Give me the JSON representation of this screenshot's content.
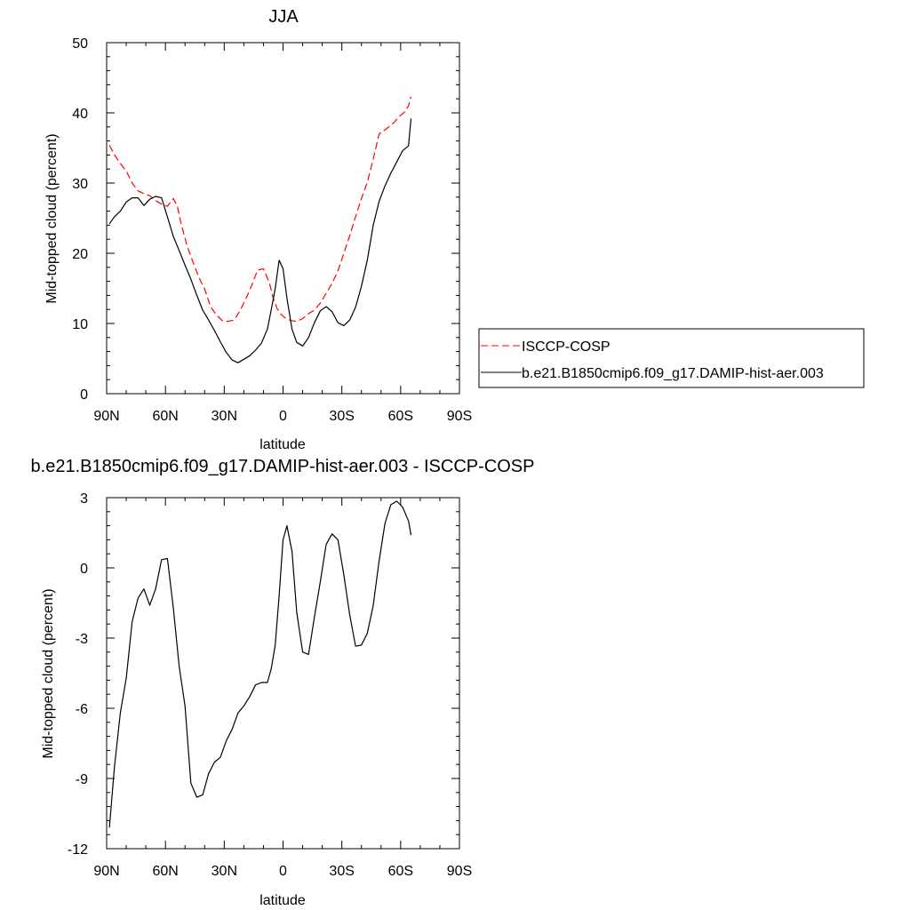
{
  "chart_data": [
    {
      "type": "line",
      "title": "JJA",
      "xlabel": "latitude",
      "ylabel": "Mid-topped cloud (percent)",
      "xlim": [
        -90,
        90
      ],
      "ylim": [
        0,
        50
      ],
      "x_ticks": [
        -90,
        -60,
        -30,
        0,
        30,
        60,
        90
      ],
      "x_tick_labels": [
        "90N",
        "60N",
        "30N",
        "0",
        "30S",
        "60S",
        "90S"
      ],
      "y_ticks": [
        0,
        10,
        20,
        30,
        40,
        50
      ],
      "y_tick_labels": [
        "0",
        "10",
        "20",
        "30",
        "40",
        "50"
      ],
      "grid": false,
      "legend": {
        "position": "right",
        "entries": [
          {
            "label": "ISCCP-COSP",
            "color": "#ff0000",
            "dash": "dashed"
          },
          {
            "label": "b.e21.B1850cmip6.f09_g17.DAMIP-hist-aer.003",
            "color": "#000000",
            "dash": "solid"
          }
        ]
      },
      "series": [
        {
          "name": "ISCCP-COSP",
          "color": "#ff0000",
          "dash": "dashed",
          "x": [
            -88.6,
            -86,
            -83,
            -80,
            -77,
            -74,
            -71,
            -68,
            -65,
            -62,
            -59,
            -56,
            -54,
            -52,
            -49,
            -46,
            -43,
            -40,
            -37,
            -34,
            -31,
            -28,
            -25,
            -22,
            -19,
            -16,
            -13,
            -10,
            -7,
            -5,
            -3,
            -1,
            1,
            4,
            7,
            10,
            13,
            16,
            19,
            22,
            25,
            28,
            31,
            34,
            37,
            40,
            43,
            46,
            49,
            52,
            55,
            56.5,
            59,
            62,
            64,
            65.3
          ],
          "values": [
            35.4,
            34,
            32.8,
            31.7,
            30,
            28.9,
            28.5,
            28.2,
            27.5,
            27,
            26.7,
            27.8,
            26.8,
            24.2,
            21.1,
            18.8,
            16.6,
            14.9,
            12.4,
            11.2,
            10.4,
            10.3,
            10.5,
            11.8,
            13.5,
            15.4,
            17.6,
            17.8,
            15.8,
            13.6,
            12.1,
            11.3,
            10.8,
            10.4,
            10.3,
            10.7,
            11.4,
            11.9,
            12.9,
            14.3,
            15.7,
            17.5,
            20,
            22.5,
            25.2,
            27.8,
            30.1,
            33.4,
            37,
            37.6,
            38.2,
            38.6,
            39.4,
            40.1,
            41,
            42.3
          ]
        },
        {
          "name": "b.e21.B1850cmip6.f09_g17.DAMIP-hist-aer.003",
          "color": "#000000",
          "dash": "solid",
          "x": [
            -88.6,
            -86,
            -83,
            -80,
            -77,
            -74,
            -71,
            -68,
            -65,
            -62,
            -59,
            -56,
            -53,
            -50,
            -47,
            -44,
            -41,
            -38,
            -35,
            -32,
            -29,
            -26,
            -23,
            -20,
            -17,
            -14,
            -11,
            -8,
            -6,
            -4,
            -2,
            0,
            2,
            4.6,
            7,
            10,
            13,
            16,
            19,
            22,
            25,
            28,
            31,
            34,
            37,
            40,
            43,
            46,
            49,
            52,
            55,
            58,
            61,
            64,
            65.3
          ],
          "values": [
            24.2,
            25.2,
            26,
            27.3,
            27.9,
            27.9,
            26.8,
            27.7,
            28.1,
            27.9,
            25.2,
            22.4,
            20.4,
            18.3,
            16.3,
            14,
            11.9,
            10.5,
            9,
            7.4,
            5.9,
            4.8,
            4.4,
            4.9,
            5.4,
            6.2,
            7.2,
            9.2,
            12,
            15,
            19,
            17.8,
            13.6,
            9.2,
            7.3,
            6.8,
            8,
            10.1,
            11.8,
            12.4,
            11.7,
            10.1,
            9.7,
            10.5,
            12.3,
            15.3,
            19,
            24,
            27.4,
            29.6,
            31.4,
            33,
            34.6,
            35.3,
            39.2
          ]
        }
      ]
    },
    {
      "type": "line",
      "title": "b.e21.B1850cmip6.f09_g17.DAMIP-hist-aer.003 - ISCCP-COSP",
      "xlabel": "latitude",
      "ylabel": "Mid-topped cloud (percent)",
      "xlim": [
        -90,
        90
      ],
      "ylim": [
        -12,
        3
      ],
      "x_ticks": [
        -90,
        -60,
        -30,
        0,
        30,
        60,
        90
      ],
      "x_tick_labels": [
        "90N",
        "60N",
        "30N",
        "0",
        "30S",
        "60S",
        "90S"
      ],
      "y_ticks": [
        -12,
        -9,
        -6,
        -3,
        0,
        3
      ],
      "y_tick_labels": [
        "-12",
        "-9",
        "-6",
        "-3",
        "0",
        "3"
      ],
      "grid": false,
      "series": [
        {
          "color": "#000000",
          "dash": "solid",
          "x": [
            -88.6,
            -86,
            -83,
            -80,
            -77,
            -74,
            -71,
            -68,
            -65,
            -62,
            -59,
            -56,
            -53,
            -50,
            -47,
            -44,
            -41,
            -38,
            -35,
            -32,
            -29,
            -26,
            -23,
            -20,
            -17,
            -14,
            -11,
            -8,
            -6,
            -4,
            -2,
            0,
            2,
            4.6,
            7,
            10,
            13,
            16,
            19,
            22,
            25,
            28,
            31,
            34,
            37,
            40,
            43,
            46,
            49,
            52,
            55,
            58,
            61,
            64,
            65.3
          ],
          "values": [
            -11.1,
            -8.5,
            -6.2,
            -4.7,
            -2.3,
            -1.3,
            -0.9,
            -1.6,
            -0.9,
            0.35,
            0.4,
            -1.7,
            -4.2,
            -5.9,
            -9.2,
            -9.8,
            -9.7,
            -8.8,
            -8.3,
            -8.1,
            -7.4,
            -6.9,
            -6.2,
            -5.9,
            -5.5,
            -5,
            -4.9,
            -4.9,
            -4.3,
            -3.3,
            -1.2,
            1.2,
            1.8,
            0.7,
            -1.9,
            -3.6,
            -3.7,
            -2.1,
            -0.6,
            1.0,
            1.45,
            1.2,
            -0.3,
            -2,
            -3.35,
            -3.3,
            -2.8,
            -1.6,
            0.3,
            1.9,
            2.7,
            2.85,
            2.6,
            2.0,
            1.4
          ]
        }
      ]
    }
  ]
}
